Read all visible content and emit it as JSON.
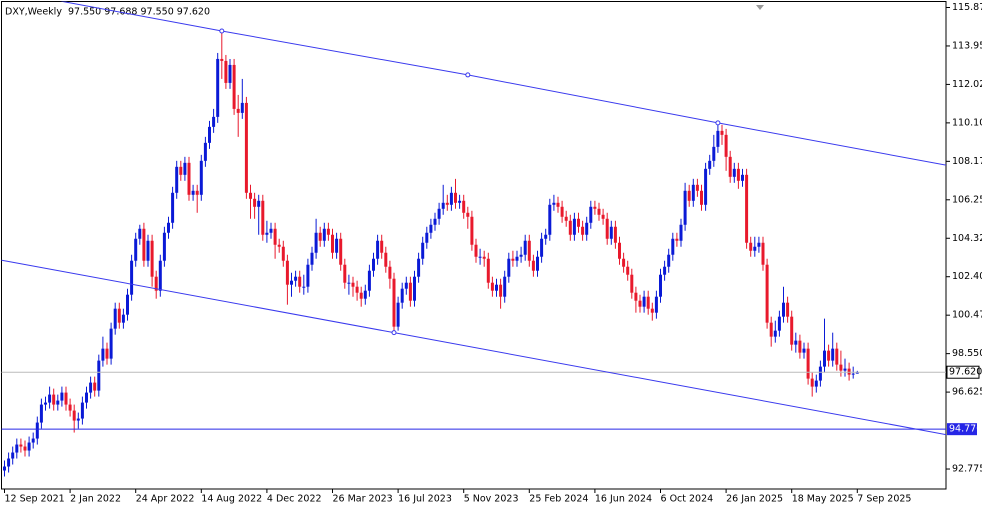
{
  "chart_data": {
    "type": "candlestick",
    "title": "DXY,Weekly  97.550 97.688 97.550 97.620",
    "up_color": "#0a1ad6",
    "down_color": "#e8192c",
    "trendline_color": "#3a3aee",
    "price_line_color": "#bbbbbb",
    "level_color": "#2626e6",
    "ylim": [
      91.775,
      116.175
    ],
    "yticks": [
      115.875,
      {
        "value": 113.95,
        "label": "113.950"
      },
      112.025,
      {
        "value": 110.1,
        "label": "110.100"
      },
      108.175,
      {
        "value": 106.25,
        "label": "106.250"
      },
      104.325,
      {
        "value": 102.4,
        "label": "102.400"
      },
      100.475,
      {
        "value": 98.55,
        "label": "98.550"
      },
      96.625,
      92.775
    ],
    "price_label": {
      "value": 97.62,
      "label": "97.620"
    },
    "level": {
      "value": 94.77,
      "label": "94.770"
    },
    "trendlines": [
      {
        "x": [
          53,
          113,
          174
        ],
        "y": [
          114.7,
          112.5,
          110.1
        ]
      },
      {
        "x": [
          0,
          95
        ],
        "y": [
          103.2,
          99.6
        ]
      }
    ],
    "categories": [
      "12 Sep 2021",
      null,
      null,
      null,
      null,
      null,
      null,
      null,
      null,
      null,
      null,
      null,
      null,
      null,
      null,
      null,
      "2 Jan 2022",
      null,
      null,
      null,
      null,
      null,
      null,
      null,
      null,
      null,
      null,
      null,
      null,
      null,
      null,
      null,
      "24 Apr 2022",
      null,
      null,
      null,
      null,
      null,
      null,
      null,
      null,
      null,
      null,
      null,
      null,
      null,
      null,
      null,
      "14 Aug 2022",
      null,
      null,
      null,
      null,
      null,
      null,
      null,
      null,
      null,
      null,
      null,
      null,
      null,
      null,
      null,
      "4 Dec 2022",
      null,
      null,
      null,
      null,
      null,
      null,
      null,
      null,
      null,
      null,
      null,
      null,
      null,
      null,
      null,
      "26 Mar 2023",
      null,
      null,
      null,
      null,
      null,
      null,
      null,
      null,
      null,
      null,
      null,
      null,
      null,
      null,
      null,
      "16 Jul 2023",
      null,
      null,
      null,
      null,
      null,
      null,
      null,
      null,
      null,
      null,
      null,
      null,
      null,
      null,
      null,
      "5 Nov 2023",
      null,
      null,
      null,
      null,
      null,
      null,
      null,
      null,
      null,
      null,
      null,
      null,
      null,
      null,
      null,
      "25 Feb 2024",
      null,
      null,
      null,
      null,
      null,
      null,
      null,
      null,
      null,
      null,
      null,
      null,
      null,
      null,
      null,
      "16 Jun 2024",
      null,
      null,
      null,
      null,
      null,
      null,
      null,
      null,
      null,
      null,
      null,
      null,
      null,
      null,
      null,
      "6 Oct 2024",
      null,
      null,
      null,
      null,
      null,
      null,
      null,
      null,
      null,
      null,
      null,
      null,
      null,
      null,
      null,
      "26 Jan 2025",
      null,
      null,
      null,
      null,
      null,
      null,
      null,
      null,
      null,
      null,
      null,
      null,
      null,
      null,
      null,
      "18 May 2025",
      null,
      null,
      null,
      null,
      null,
      null,
      null,
      null,
      null,
      null,
      null,
      null,
      null,
      null,
      null,
      "7 Sep 2025"
    ],
    "open": [
      92.7,
      92.9,
      93.3,
      93.6,
      94.0,
      93.9,
      93.7,
      94.1,
      94.3,
      95.1,
      96.0,
      96.1,
      96.5,
      96.0,
      96.2,
      96.6,
      96.0,
      95.7,
      95.2,
      95.3,
      96.1,
      96.6,
      97.1,
      96.7,
      98.2,
      98.8,
      98.3,
      99.8,
      100.8,
      100.1,
      100.5,
      101.5,
      103.2,
      104.3,
      104.8,
      103.2,
      104.2,
      102.4,
      101.7,
      103.2,
      104.6,
      105.1,
      106.6,
      107.9,
      107.5,
      108.1,
      106.5,
      106.7,
      106.5,
      108.2,
      109.1,
      109.9,
      110.4,
      113.3,
      113.2,
      112.1,
      113.0,
      110.8,
      110.6,
      111.1,
      106.6,
      106.3,
      105.9,
      106.2,
      104.5,
      104.6,
      104.8,
      104.0,
      103.9,
      103.2,
      102.0,
      102.2,
      102.4,
      101.9,
      101.9,
      103.0,
      103.6,
      104.6,
      104.2,
      104.8,
      104.5,
      103.6,
      104.3,
      103.0,
      102.1,
      102.1,
      101.9,
      101.6,
      101.3,
      101.7,
      102.7,
      103.3,
      104.2,
      103.6,
      102.9,
      102.3,
      99.9,
      101.1,
      101.8,
      102.1,
      101.2,
      102.4,
      103.3,
      104.1,
      104.6,
      105.0,
      105.3,
      105.8,
      106.1,
      106.0,
      106.6,
      106.1,
      106.2,
      105.6,
      105.4,
      104.0,
      103.4,
      103.4,
      103.3,
      102.1,
      101.7,
      102.0,
      101.4,
      102.4,
      103.3,
      103.2,
      103.4,
      103.5,
      104.2,
      103.2,
      102.7,
      103.4,
      104.3,
      104.5,
      106.0,
      106.1,
      105.9,
      105.4,
      105.2,
      104.5,
      105.3,
      104.9,
      104.5,
      105.1,
      105.9,
      105.8,
      105.5,
      105.3,
      104.3,
      104.9,
      104.1,
      103.3,
      102.9,
      102.5,
      101.6,
      101.2,
      100.9,
      101.4,
      100.8,
      100.6,
      101.4,
      102.5,
      102.9,
      103.5,
      104.3,
      104.2,
      105.0,
      106.7,
      106.2,
      107.0,
      106.7,
      106.0,
      107.8,
      108.2,
      108.9,
      109.7,
      109.5,
      108.4,
      107.4,
      107.8,
      107.2,
      107.5,
      104.1,
      103.7,
      103.9,
      104.1,
      103.0,
      100.1,
      99.4,
      99.7,
      100.4,
      101.1,
      100.4,
      99.0,
      99.2,
      98.6,
      98.8,
      97.3,
      96.9,
      97.2,
      97.9,
      98.7,
      98.2,
      98.8,
      98.0,
      97.7,
      97.8,
      97.5,
      97.55
    ],
    "high": [
      93.2,
      93.6,
      93.9,
      94.3,
      94.3,
      94.2,
      94.4,
      94.6,
      95.4,
      96.3,
      96.4,
      96.9,
      96.8,
      96.5,
      96.9,
      96.9,
      96.3,
      96.0,
      95.6,
      96.4,
      96.9,
      97.4,
      97.4,
      98.5,
      99.4,
      99.1,
      100.1,
      101.1,
      101.1,
      100.8,
      101.8,
      103.5,
      104.6,
      105.0,
      105.1,
      104.5,
      104.5,
      102.7,
      103.5,
      104.9,
      105.4,
      106.9,
      108.2,
      108.2,
      108.4,
      108.4,
      107.0,
      107.0,
      108.5,
      109.4,
      110.2,
      110.8,
      113.6,
      114.7,
      113.5,
      113.3,
      113.3,
      111.5,
      112.3,
      111.4,
      107.0,
      106.6,
      106.5,
      106.5,
      105.2,
      105.1,
      105.1,
      104.3,
      104.2,
      103.5,
      102.6,
      102.7,
      102.7,
      102.5,
      103.3,
      103.9,
      105.3,
      104.9,
      105.1,
      105.1,
      104.8,
      104.6,
      104.6,
      103.3,
      102.5,
      102.4,
      102.2,
      101.9,
      102.0,
      103.0,
      103.6,
      104.5,
      104.5,
      103.9,
      103.2,
      102.6,
      101.4,
      102.1,
      102.4,
      102.4,
      102.7,
      103.6,
      104.4,
      104.9,
      105.3,
      105.6,
      106.1,
      107.0,
      106.5,
      106.9,
      107.3,
      106.5,
      106.5,
      105.9,
      105.7,
      104.3,
      103.8,
      103.7,
      103.6,
      102.4,
      102.3,
      102.3,
      102.7,
      103.6,
      103.7,
      103.7,
      103.9,
      104.5,
      104.5,
      103.5,
      103.7,
      104.6,
      104.8,
      106.3,
      106.5,
      106.4,
      106.2,
      105.7,
      105.5,
      105.6,
      105.6,
      105.2,
      105.4,
      106.2,
      106.2,
      106.1,
      105.8,
      105.6,
      105.2,
      105.2,
      104.4,
      103.6,
      103.2,
      102.8,
      101.9,
      101.5,
      101.7,
      101.7,
      101.1,
      101.7,
      102.8,
      103.2,
      103.8,
      104.6,
      104.6,
      105.3,
      107.1,
      107.0,
      107.3,
      107.3,
      107.0,
      108.1,
      108.5,
      109.5,
      110.1,
      110.0,
      109.8,
      108.7,
      108.1,
      108.1,
      107.8,
      107.8,
      104.4,
      104.4,
      104.4,
      104.4,
      103.3,
      100.4,
      100.2,
      100.7,
      101.9,
      101.4,
      100.7,
      99.6,
      99.5,
      99.1,
      99.1,
      97.6,
      97.5,
      98.2,
      100.3,
      99.0,
      99.6,
      99.1,
      98.7,
      98.3,
      98.1,
      97.9,
      97.688
    ],
    "low": [
      92.4,
      92.6,
      93.0,
      93.3,
      93.6,
      93.4,
      93.4,
      93.8,
      94.0,
      94.8,
      95.7,
      95.8,
      95.7,
      95.7,
      95.9,
      95.7,
      95.4,
      94.6,
      94.8,
      95.0,
      95.8,
      96.3,
      96.4,
      96.4,
      97.9,
      98.0,
      98.0,
      99.5,
      99.8,
      99.8,
      100.2,
      101.2,
      102.9,
      104.0,
      102.9,
      102.9,
      101.9,
      101.3,
      101.4,
      102.9,
      104.3,
      104.8,
      106.3,
      107.2,
      107.2,
      106.2,
      106.2,
      105.6,
      106.2,
      107.9,
      108.8,
      109.6,
      110.1,
      112.3,
      111.8,
      111.8,
      110.5,
      109.4,
      110.3,
      106.3,
      105.3,
      105.3,
      104.5,
      104.2,
      104.1,
      104.3,
      103.3,
      103.6,
      102.9,
      101.0,
      101.4,
      101.9,
      101.6,
      101.5,
      101.6,
      102.7,
      103.3,
      103.9,
      103.9,
      104.2,
      103.3,
      103.3,
      102.7,
      101.8,
      101.5,
      101.4,
      101.2,
      100.9,
      101.0,
      101.4,
      102.4,
      103.0,
      103.3,
      102.6,
      101.8,
      99.6,
      99.7,
      100.8,
      101.5,
      100.9,
      100.9,
      102.1,
      103.0,
      103.8,
      104.3,
      104.7,
      105.0,
      105.5,
      105.7,
      105.7,
      105.8,
      105.8,
      105.3,
      104.8,
      103.7,
      103.1,
      103.0,
      102.9,
      101.8,
      101.4,
      101.4,
      100.8,
      101.1,
      102.1,
      102.9,
      102.9,
      103.1,
      103.2,
      102.9,
      102.4,
      102.4,
      103.1,
      104.0,
      104.2,
      105.7,
      105.6,
      105.1,
      104.9,
      104.2,
      104.2,
      104.6,
      104.2,
      104.2,
      104.8,
      105.5,
      105.2,
      105.0,
      104.0,
      104.0,
      103.8,
      103.0,
      102.6,
      102.2,
      101.3,
      100.6,
      100.6,
      100.6,
      100.5,
      100.2,
      100.3,
      101.1,
      102.2,
      102.6,
      103.2,
      103.9,
      103.9,
      104.7,
      105.9,
      105.9,
      106.4,
      105.7,
      105.7,
      107.5,
      107.9,
      108.6,
      109.0,
      107.7,
      107.1,
      107.1,
      106.8,
      106.9,
      103.8,
      103.4,
      103.4,
      103.6,
      102.7,
      99.8,
      98.9,
      99.1,
      99.4,
      100.1,
      100.1,
      98.7,
      98.6,
      98.3,
      98.3,
      97.0,
      96.4,
      96.6,
      96.9,
      97.6,
      97.9,
      97.9,
      97.7,
      97.4,
      97.4,
      97.2,
      97.3,
      97.55
    ],
    "close": [
      92.9,
      93.3,
      93.6,
      94.0,
      93.9,
      93.7,
      94.1,
      94.3,
      95.1,
      96.0,
      96.1,
      96.5,
      96.0,
      96.2,
      96.6,
      96.0,
      95.7,
      95.2,
      95.3,
      96.1,
      96.6,
      97.1,
      96.7,
      98.2,
      98.8,
      98.3,
      99.8,
      100.8,
      100.1,
      100.5,
      101.5,
      103.2,
      104.3,
      104.8,
      103.2,
      104.2,
      102.4,
      101.7,
      103.2,
      104.6,
      105.1,
      106.6,
      107.9,
      107.5,
      108.1,
      106.5,
      106.7,
      106.5,
      108.2,
      109.1,
      109.9,
      110.4,
      113.3,
      113.2,
      112.1,
      113.0,
      110.8,
      110.6,
      111.1,
      106.6,
      106.3,
      105.9,
      106.2,
      104.5,
      104.6,
      104.8,
      104.0,
      103.9,
      103.2,
      102.0,
      102.2,
      102.4,
      101.9,
      101.9,
      103.0,
      103.6,
      104.6,
      104.2,
      104.8,
      104.5,
      103.6,
      104.3,
      103.0,
      102.1,
      102.1,
      101.9,
      101.6,
      101.3,
      101.7,
      102.7,
      103.3,
      104.2,
      103.6,
      102.9,
      102.3,
      99.9,
      101.1,
      101.8,
      102.1,
      101.2,
      102.4,
      103.3,
      104.1,
      104.6,
      105.0,
      105.3,
      105.8,
      106.1,
      106.0,
      106.6,
      106.1,
      106.2,
      105.6,
      105.4,
      104.0,
      103.4,
      103.4,
      103.3,
      102.1,
      101.7,
      102.0,
      101.4,
      102.4,
      103.3,
      103.2,
      103.4,
      103.5,
      104.2,
      103.2,
      102.7,
      103.4,
      104.3,
      104.5,
      106.0,
      106.1,
      105.9,
      105.4,
      105.2,
      104.5,
      105.3,
      104.9,
      104.5,
      105.1,
      105.9,
      105.8,
      105.5,
      105.3,
      104.3,
      104.9,
      104.1,
      103.3,
      102.9,
      102.5,
      101.6,
      101.2,
      100.9,
      101.4,
      100.8,
      100.6,
      101.4,
      102.5,
      102.9,
      103.5,
      104.3,
      104.2,
      105.0,
      106.7,
      106.2,
      107.0,
      106.7,
      106.0,
      107.8,
      108.2,
      108.9,
      109.7,
      109.5,
      108.4,
      107.4,
      107.8,
      107.2,
      107.5,
      104.1,
      103.7,
      103.9,
      104.1,
      103.0,
      100.1,
      99.4,
      99.7,
      100.4,
      101.1,
      100.4,
      99.0,
      99.2,
      98.6,
      98.8,
      97.3,
      96.9,
      97.2,
      97.9,
      98.7,
      98.2,
      98.8,
      98.0,
      97.7,
      97.8,
      97.5,
      97.55,
      97.62
    ]
  }
}
